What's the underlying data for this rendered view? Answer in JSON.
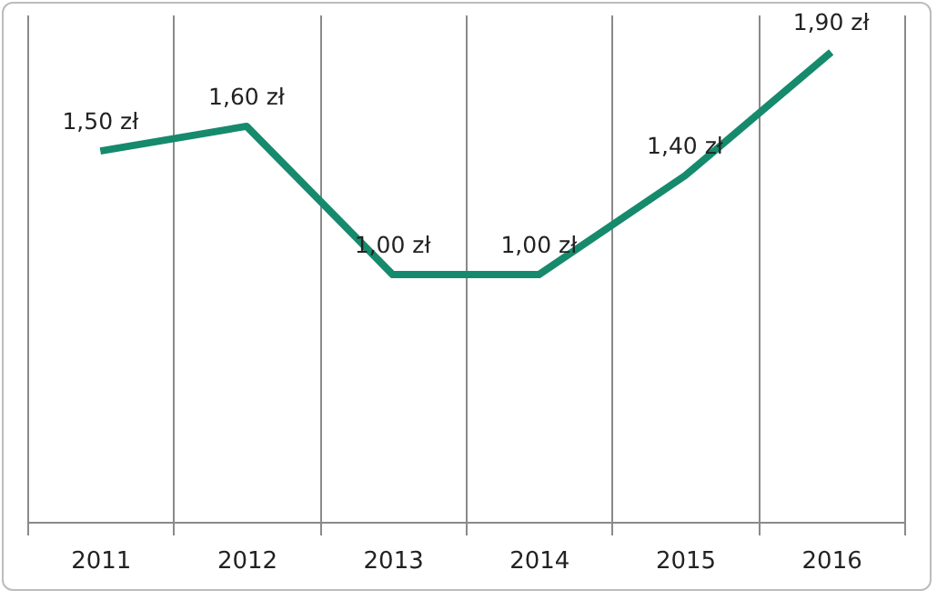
{
  "chart_data": {
    "type": "line",
    "categories": [
      "2011",
      "2012",
      "2013",
      "2014",
      "2015",
      "2016"
    ],
    "series": [
      {
        "color": "#168a6c",
        "values": [
          1.5,
          1.6,
          1.0,
          1.0,
          1.4,
          1.9
        ],
        "value_labels": [
          "1,50 zł",
          "1,60 zł",
          "1,00 zł",
          "1,00 zł",
          "1,40 zł",
          "1,90 zł"
        ]
      }
    ],
    "grid": "x"
  }
}
